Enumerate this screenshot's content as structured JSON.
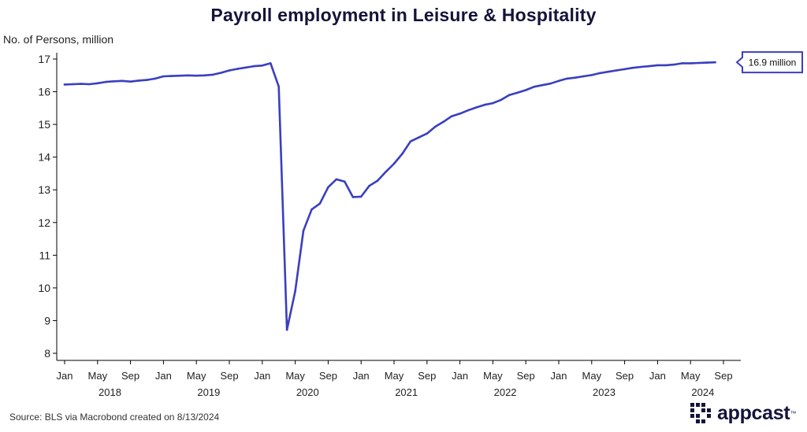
{
  "chart_data": {
    "type": "line",
    "title": "Payroll employment in Leisure & Hospitality",
    "ylabel": "No. of Persons, million",
    "xlabel": "",
    "ylim": [
      8,
      17
    ],
    "yticks": [
      8,
      9,
      10,
      11,
      12,
      13,
      14,
      15,
      16,
      17
    ],
    "x_tick_labels": [
      "Jan",
      "May",
      "Sep",
      "Jan",
      "May",
      "Sep",
      "Jan",
      "May",
      "Sep",
      "Jan",
      "May",
      "Sep",
      "Jan",
      "May",
      "Sep",
      "Jan",
      "May",
      "Sep",
      "Jan",
      "May",
      "Sep"
    ],
    "year_labels": [
      "2018",
      "2019",
      "2020",
      "2021",
      "2022",
      "2023",
      "2024"
    ],
    "grid": false,
    "annotation": "16.9 million",
    "series": [
      {
        "color": "#3a3fbf",
        "start": "2018-01",
        "values": [
          16.22,
          16.23,
          16.24,
          16.23,
          16.26,
          16.3,
          16.32,
          16.33,
          16.31,
          16.34,
          16.36,
          16.4,
          16.47,
          16.48,
          16.49,
          16.5,
          16.49,
          16.5,
          16.52,
          16.58,
          16.65,
          16.7,
          16.74,
          16.78,
          16.8,
          16.87,
          16.16,
          8.72,
          9.9,
          11.75,
          12.4,
          12.58,
          13.08,
          13.32,
          13.25,
          12.78,
          12.79,
          13.12,
          13.28,
          13.55,
          13.8,
          14.1,
          14.48,
          14.6,
          14.72,
          14.93,
          15.08,
          15.25,
          15.33,
          15.43,
          15.52,
          15.6,
          15.65,
          15.75,
          15.9,
          15.97,
          16.05,
          16.15,
          16.2,
          16.25,
          16.33,
          16.4,
          16.43,
          16.47,
          16.51,
          16.57,
          16.61,
          16.65,
          16.69,
          16.73,
          16.76,
          16.78,
          16.81,
          16.81,
          16.83,
          16.87,
          16.87,
          16.88,
          16.89,
          16.9
        ]
      }
    ]
  },
  "source": "Source: BLS via Macrobond created on 8/13/2024",
  "logo": "appcast"
}
